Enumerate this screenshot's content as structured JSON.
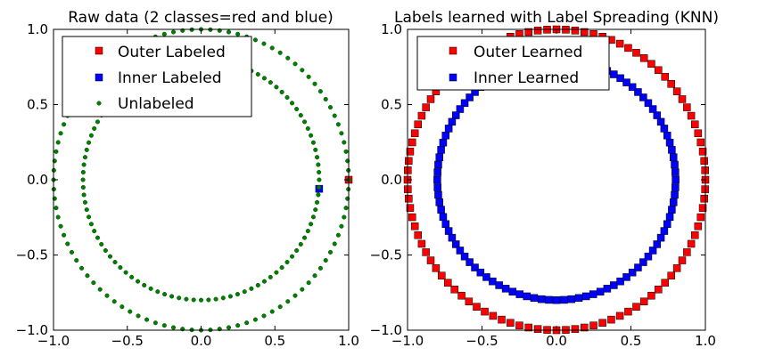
{
  "chart_data": [
    {
      "type": "scatter",
      "title": "Raw data (2 classes=red and blue)",
      "xlim": [
        -1.0,
        1.0
      ],
      "ylim": [
        -1.0,
        1.0
      ],
      "xticks": [
        "−1.0",
        "−0.5",
        "0.0",
        "0.5",
        "1.0"
      ],
      "yticks": [
        "1.0",
        "0.5",
        "0.0",
        "−0.5",
        "−1.0"
      ],
      "grid": false,
      "legend_position": "top-left",
      "series": [
        {
          "name": "Outer Labeled",
          "color": "#ff0000",
          "marker": "square",
          "points": [
            [
              1.0,
              0.0
            ]
          ]
        },
        {
          "name": "Inner Labeled",
          "color": "#0000ff",
          "marker": "square",
          "points": [
            [
              0.8,
              -0.06
            ]
          ]
        },
        {
          "name": "Unlabeled",
          "color": "#008000",
          "marker": "dot",
          "generated": {
            "circles": [
              {
                "radius": 1.0,
                "count": 100
              },
              {
                "radius": 0.8,
                "count": 100
              }
            ]
          }
        }
      ]
    },
    {
      "type": "scatter",
      "title": "Labels learned with Label Spreading (KNN)",
      "xlim": [
        -1.0,
        1.0
      ],
      "ylim": [
        -1.0,
        1.0
      ],
      "xticks": [
        "−1.0",
        "−0.5",
        "0.0",
        "0.5",
        "1.0"
      ],
      "yticks": [
        "1.0",
        "0.5",
        "0.0",
        "−0.5",
        "−1.0"
      ],
      "grid": false,
      "legend_position": "top-left",
      "series": [
        {
          "name": "Outer Learned",
          "color": "#ff0000",
          "marker": "square",
          "generated": {
            "circles": [
              {
                "radius": 1.0,
                "count": 100
              }
            ]
          }
        },
        {
          "name": "Inner Learned",
          "color": "#0000ff",
          "marker": "square",
          "generated": {
            "circles": [
              {
                "radius": 0.8,
                "count": 100
              }
            ]
          }
        }
      ]
    }
  ]
}
